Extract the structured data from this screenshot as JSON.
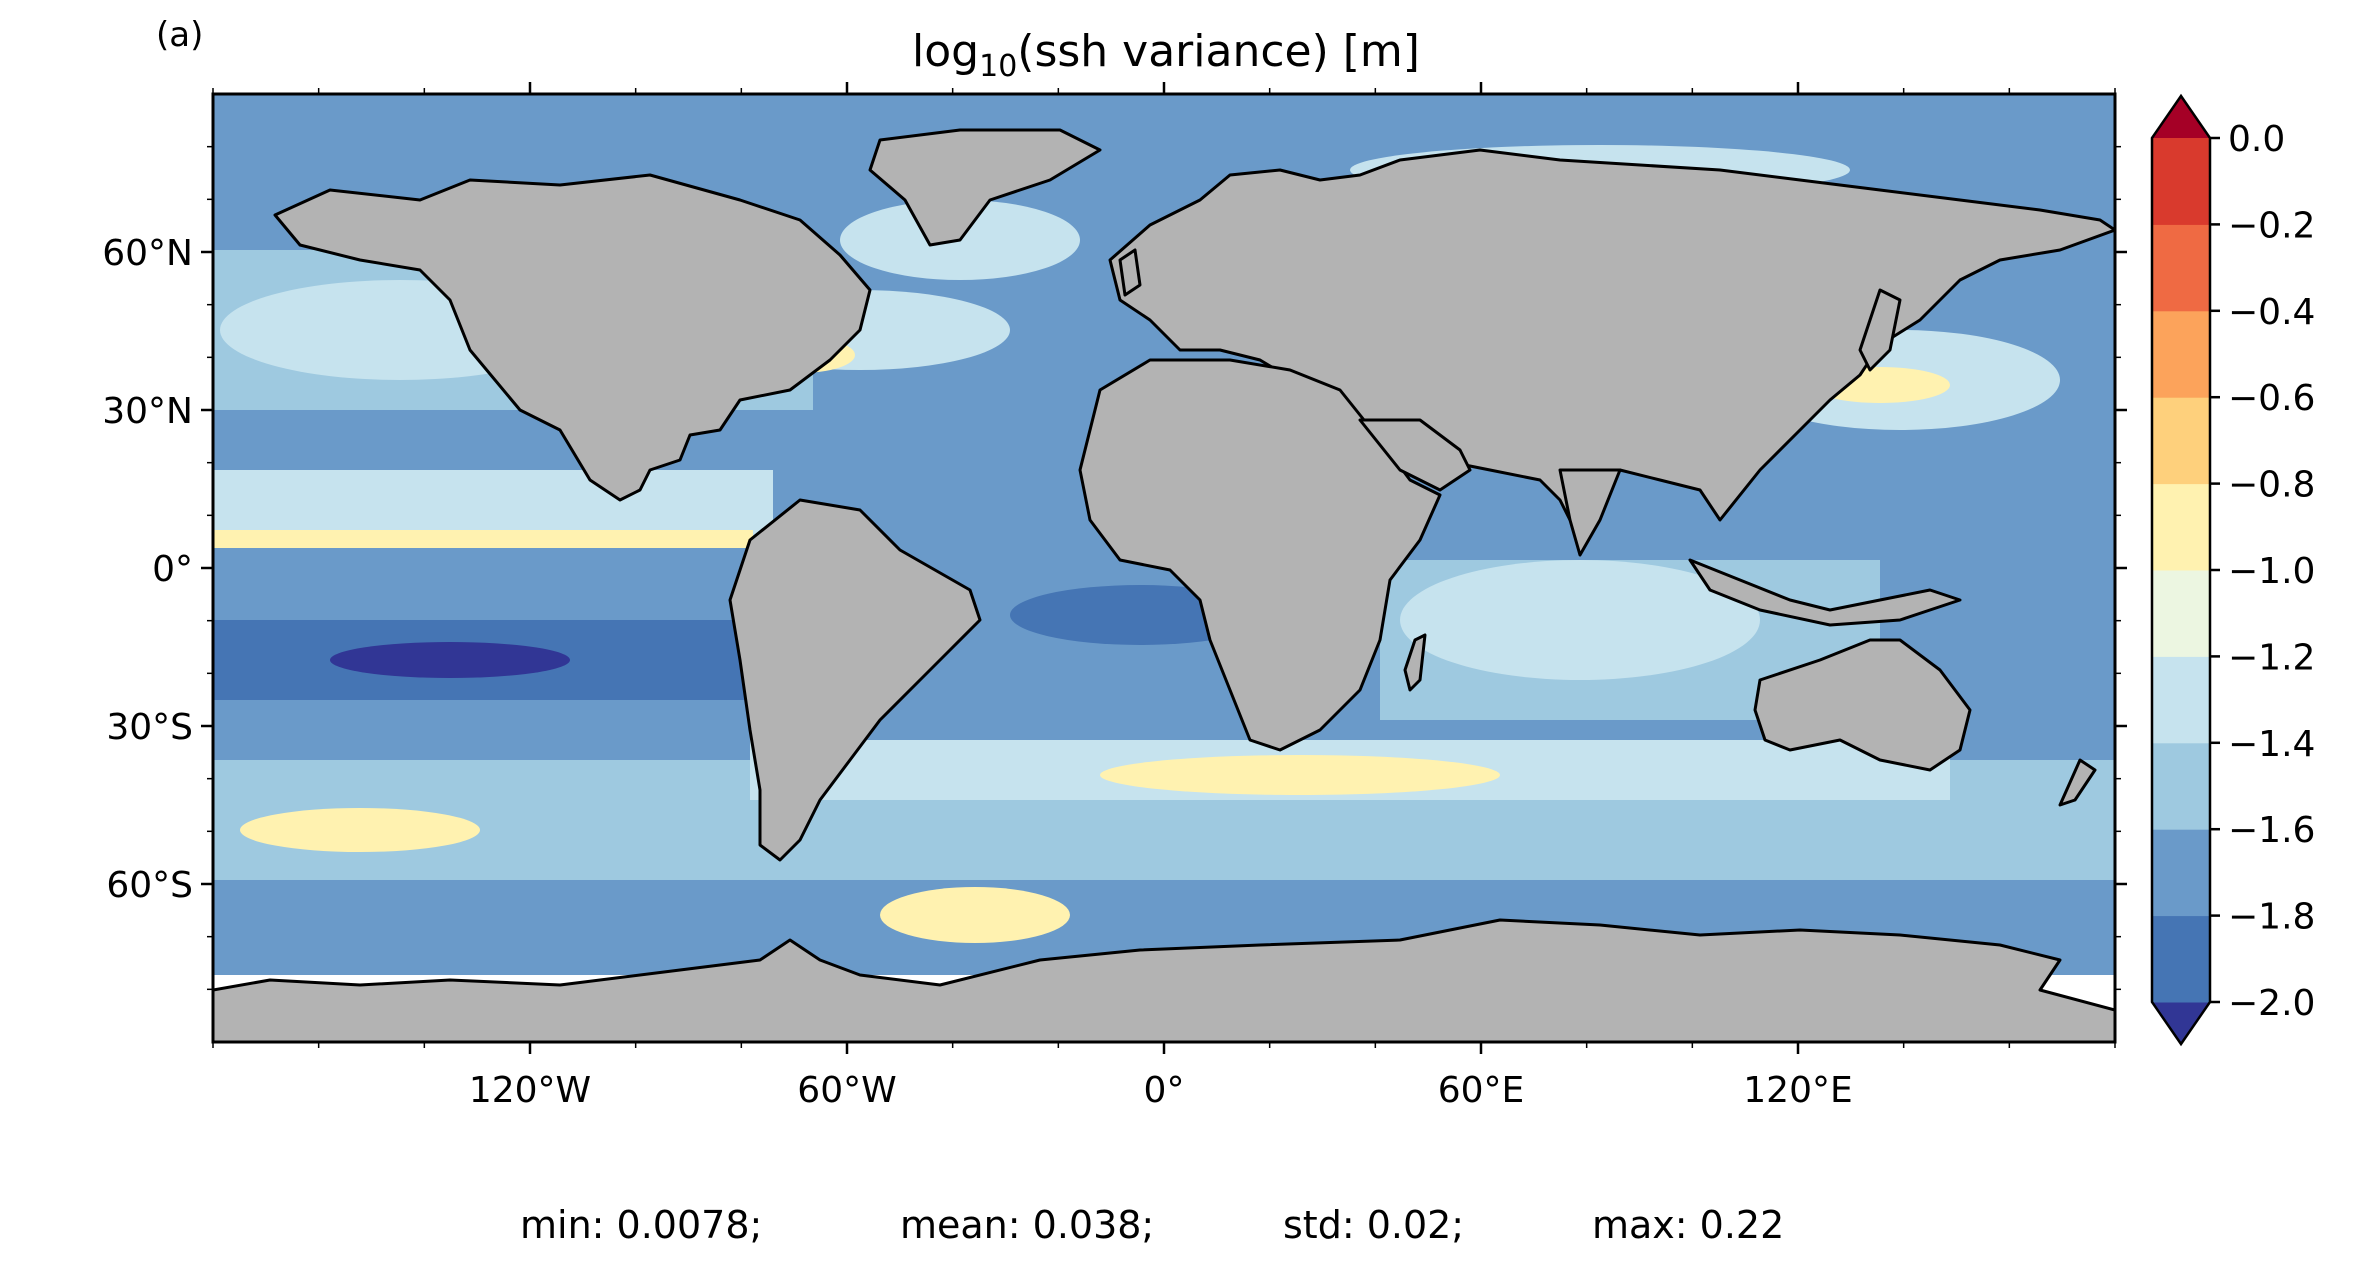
{
  "panel_label": "(a)",
  "title": {
    "prefix": "log",
    "subscript": "10",
    "suffix": "(ssh variance) [m]"
  },
  "map": {
    "projection": "PlateCarree",
    "extent_lon": [
      -180,
      180
    ],
    "extent_lat": [
      -90,
      90
    ],
    "land_color": "#b3b3b3",
    "coastline_color": "#000000",
    "lat_ticks": [
      {
        "value": 60,
        "label": "60°N"
      },
      {
        "value": 30,
        "label": "30°N"
      },
      {
        "value": 0,
        "label": "0°"
      },
      {
        "value": -30,
        "label": "30°S"
      },
      {
        "value": -60,
        "label": "60°S"
      }
    ],
    "lon_ticks": [
      {
        "value": -120,
        "label": "120°W"
      },
      {
        "value": -60,
        "label": "60°W"
      },
      {
        "value": 0,
        "label": "0°"
      },
      {
        "value": 60,
        "label": "60°E"
      },
      {
        "value": 120,
        "label": "120°E"
      }
    ]
  },
  "colorbar": {
    "levels": [
      -2.0,
      -1.8,
      -1.6,
      -1.4,
      -1.2,
      -1.0,
      -0.8,
      -0.6,
      -0.4,
      -0.2,
      0.0
    ],
    "colors": [
      "#4575b4",
      "#6a9ac9",
      "#9ec9e0",
      "#c6e3ee",
      "#ecf6e1",
      "#fff2b0",
      "#fed07c",
      "#fca35b",
      "#ef6a43",
      "#d93a2d"
    ],
    "under_color": "#313695",
    "over_color": "#a50026",
    "tick_labels": [
      "0.0",
      "−0.2",
      "−0.4",
      "−0.6",
      "−0.8",
      "−1.0",
      "−1.2",
      "−1.4",
      "−1.6",
      "−1.8",
      "−2.0"
    ]
  },
  "stats": {
    "min": "min: 0.0078;",
    "mean": "mean: 0.038;",
    "std": "std: 0.02;",
    "max": "max: 0.22"
  }
}
